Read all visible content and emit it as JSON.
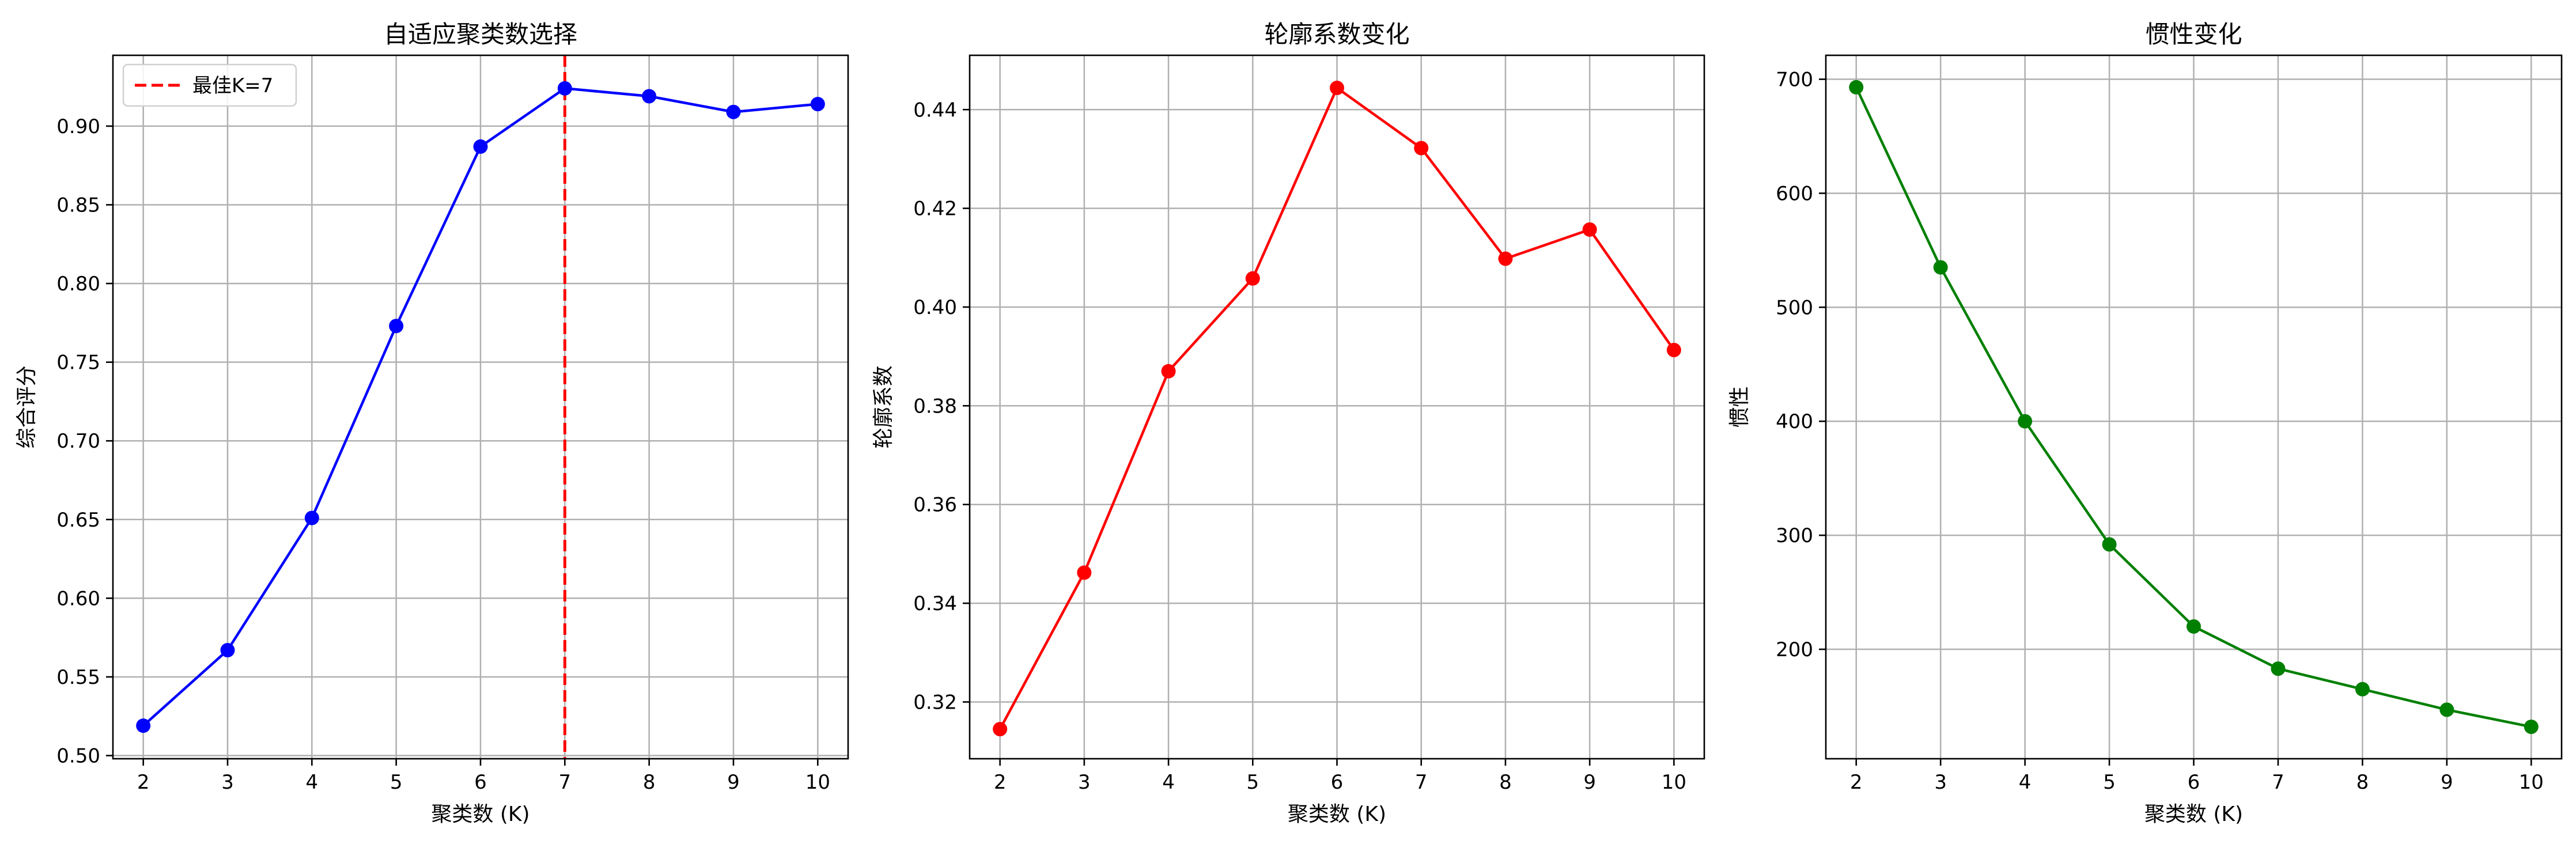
{
  "chart_data": [
    {
      "type": "line",
      "title": "自适应聚类数选择",
      "xlabel": "聚类数 (K)",
      "ylabel": "综合评分",
      "x": [
        2,
        3,
        4,
        5,
        6,
        7,
        8,
        9,
        10
      ],
      "series": [
        {
          "values": [
            0.519,
            0.567,
            0.651,
            0.773,
            0.887,
            0.924,
            0.919,
            0.909,
            0.914
          ],
          "color": "#0000ff"
        }
      ],
      "xticks": [
        2,
        3,
        4,
        5,
        6,
        7,
        8,
        9,
        10
      ],
      "yticks": [
        0.5,
        0.55,
        0.6,
        0.65,
        0.7,
        0.75,
        0.8,
        0.85,
        0.9
      ],
      "ytick_labels": [
        "0.50",
        "0.55",
        "0.60",
        "0.65",
        "0.70",
        "0.75",
        "0.80",
        "0.85",
        "0.90"
      ],
      "xlim": [
        1.64,
        10.36
      ],
      "ylim": [
        0.498,
        0.945
      ],
      "grid": true,
      "vline": {
        "x": 7,
        "color": "#ff0000",
        "style": "dashed",
        "label": "最佳K=7"
      },
      "legend": {
        "position": "top-left",
        "entries": [
          "最佳K=7"
        ]
      }
    },
    {
      "type": "line",
      "title": "轮廓系数变化",
      "xlabel": "聚类数 (K)",
      "ylabel": "轮廓系数",
      "x": [
        2,
        3,
        4,
        5,
        6,
        7,
        8,
        9,
        10
      ],
      "series": [
        {
          "values": [
            0.3145,
            0.3462,
            0.387,
            0.4058,
            0.4444,
            0.4322,
            0.4098,
            0.4157,
            0.3913
          ],
          "color": "#ff0000"
        }
      ],
      "xticks": [
        2,
        3,
        4,
        5,
        6,
        7,
        8,
        9,
        10
      ],
      "yticks": [
        0.32,
        0.34,
        0.36,
        0.38,
        0.4,
        0.42,
        0.44
      ],
      "ytick_labels": [
        "0.32",
        "0.34",
        "0.36",
        "0.38",
        "0.40",
        "0.42",
        "0.44"
      ],
      "xlim": [
        1.64,
        10.36
      ],
      "ylim": [
        0.3085,
        0.451
      ],
      "grid": true
    },
    {
      "type": "line",
      "title": "惯性变化",
      "xlabel": "聚类数 (K)",
      "ylabel": "惯性",
      "x": [
        2,
        3,
        4,
        5,
        6,
        7,
        8,
        9,
        10
      ],
      "series": [
        {
          "values": [
            693,
            535,
            400,
            292,
            220,
            183,
            165,
            147,
            132
          ],
          "color": "#008000"
        }
      ],
      "xticks": [
        2,
        3,
        4,
        5,
        6,
        7,
        8,
        9,
        10
      ],
      "yticks": [
        200,
        300,
        400,
        500,
        600,
        700
      ],
      "ytick_labels": [
        "200",
        "300",
        "400",
        "500",
        "600",
        "700"
      ],
      "xlim": [
        1.64,
        10.36
      ],
      "ylim": [
        104,
        721
      ],
      "grid": true
    }
  ]
}
